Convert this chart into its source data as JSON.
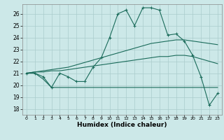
{
  "title": "",
  "xlabel": "Humidex (Indice chaleur)",
  "background_color": "#cce8e8",
  "grid_color": "#aacccc",
  "line_color": "#1a6b5a",
  "xlim": [
    -0.5,
    23.5
  ],
  "ylim": [
    17.5,
    26.8
  ],
  "yticks": [
    18,
    19,
    20,
    21,
    22,
    23,
    24,
    25,
    26
  ],
  "xticks": [
    0,
    1,
    2,
    3,
    4,
    5,
    6,
    7,
    8,
    9,
    10,
    11,
    12,
    13,
    14,
    15,
    16,
    17,
    18,
    19,
    20,
    21,
    22,
    23
  ],
  "series": [
    [
      21.0,
      21.0,
      20.7,
      19.8,
      21.0,
      20.7,
      20.3,
      20.3,
      21.5,
      22.3,
      24.0,
      26.0,
      26.3,
      25.0,
      26.5,
      26.5,
      26.3,
      24.2,
      24.3,
      23.7,
      22.5,
      20.7,
      18.3,
      19.3
    ],
    [
      21.0,
      21.1,
      21.2,
      21.3,
      21.4,
      21.5,
      21.7,
      21.9,
      22.1,
      22.3,
      22.5,
      22.7,
      22.9,
      23.1,
      23.3,
      23.5,
      23.6,
      23.7,
      23.8,
      23.8,
      23.7,
      23.6,
      23.5,
      23.4
    ],
    [
      21.0,
      21.1,
      21.1,
      21.2,
      21.2,
      21.3,
      21.4,
      21.5,
      21.6,
      21.7,
      21.8,
      21.9,
      22.0,
      22.1,
      22.2,
      22.3,
      22.4,
      22.4,
      22.5,
      22.5,
      22.4,
      22.2,
      22.0,
      21.8
    ],
    [
      21.0,
      21.0,
      20.5,
      19.8,
      19.8,
      19.8,
      19.8,
      19.8,
      19.8,
      19.8,
      19.8,
      19.8,
      19.8,
      19.8,
      19.8,
      19.8,
      19.8,
      19.8,
      19.8,
      19.8,
      19.8,
      19.8,
      19.8,
      19.8
    ]
  ],
  "has_markers": [
    true,
    false,
    false,
    false
  ],
  "marker_style": "+",
  "marker_size": 3,
  "lw": 0.8
}
